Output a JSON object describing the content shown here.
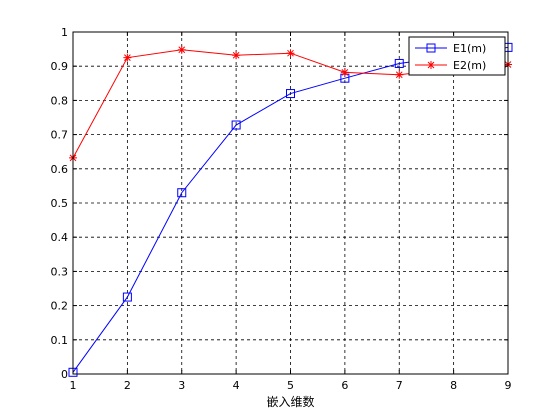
{
  "chart_data": {
    "type": "line",
    "title": "",
    "xlabel": "嵌入维数",
    "ylabel": "",
    "xlim": [
      1,
      9
    ],
    "ylim": [
      0,
      1
    ],
    "grid": true,
    "legend_position": "top-right",
    "x": [
      1,
      2,
      3,
      4,
      5,
      6,
      7,
      8,
      9
    ],
    "x_ticks": [
      "1",
      "2",
      "3",
      "4",
      "5",
      "6",
      "7",
      "8",
      "9"
    ],
    "y_ticks": [
      "0",
      "0.1",
      "0.2",
      "0.3",
      "0.4",
      "0.5",
      "0.6",
      "0.7",
      "0.8",
      "0.9",
      "1"
    ],
    "series": [
      {
        "name": "E1(m)",
        "color": "#0000ff",
        "marker": "square",
        "values": [
          0.005,
          0.225,
          0.53,
          0.728,
          0.82,
          0.865,
          0.908,
          0.93,
          0.955
        ]
      },
      {
        "name": "E2(m)",
        "color": "#ff0000",
        "marker": "asterisk",
        "values": [
          0.632,
          0.925,
          0.948,
          0.932,
          0.938,
          0.882,
          0.875,
          0.893,
          0.905
        ]
      }
    ]
  }
}
